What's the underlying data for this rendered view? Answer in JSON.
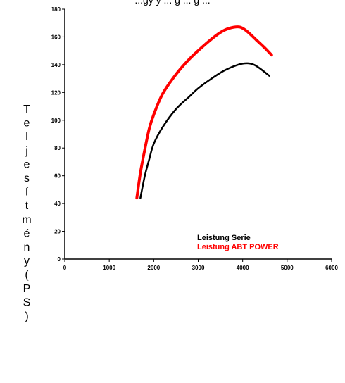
{
  "chart_data": {
    "type": "line",
    "title": "...gy y ... g ... g ...",
    "xlabel": "",
    "ylabel": "Teljesítmény (PS)",
    "xlim": [
      0,
      6000
    ],
    "ylim": [
      0,
      180
    ],
    "x_ticks": [
      "0",
      "1000",
      "2000",
      "3000",
      "4000",
      "5000",
      "6000"
    ],
    "y_ticks": [
      "0",
      "20",
      "40",
      "60",
      "80",
      "100",
      "120",
      "140",
      "160",
      "180"
    ],
    "grid": false,
    "legend_position": "bottom-right",
    "series": [
      {
        "name": "Leistung Serie",
        "color": "#000000",
        "x": [
          1700,
          1800,
          1900,
          2000,
          2200,
          2500,
          2800,
          3000,
          3300,
          3600,
          3900,
          4100,
          4250,
          4400,
          4600
        ],
        "y": [
          44,
          60,
          72,
          83,
          95,
          108,
          117,
          123,
          130,
          136,
          140,
          141,
          140,
          137,
          132
        ]
      },
      {
        "name": "Leistung ABT POWER",
        "color": "#ff0000",
        "x": [
          1620,
          1700,
          1800,
          1900,
          2000,
          2200,
          2500,
          2800,
          3100,
          3400,
          3600,
          3800,
          3950,
          4100,
          4300,
          4500,
          4650
        ],
        "y": [
          44,
          62,
          79,
          94,
          104,
          119,
          133,
          144,
          153,
          161,
          165,
          167,
          167,
          164,
          158,
          152,
          147
        ]
      }
    ]
  }
}
